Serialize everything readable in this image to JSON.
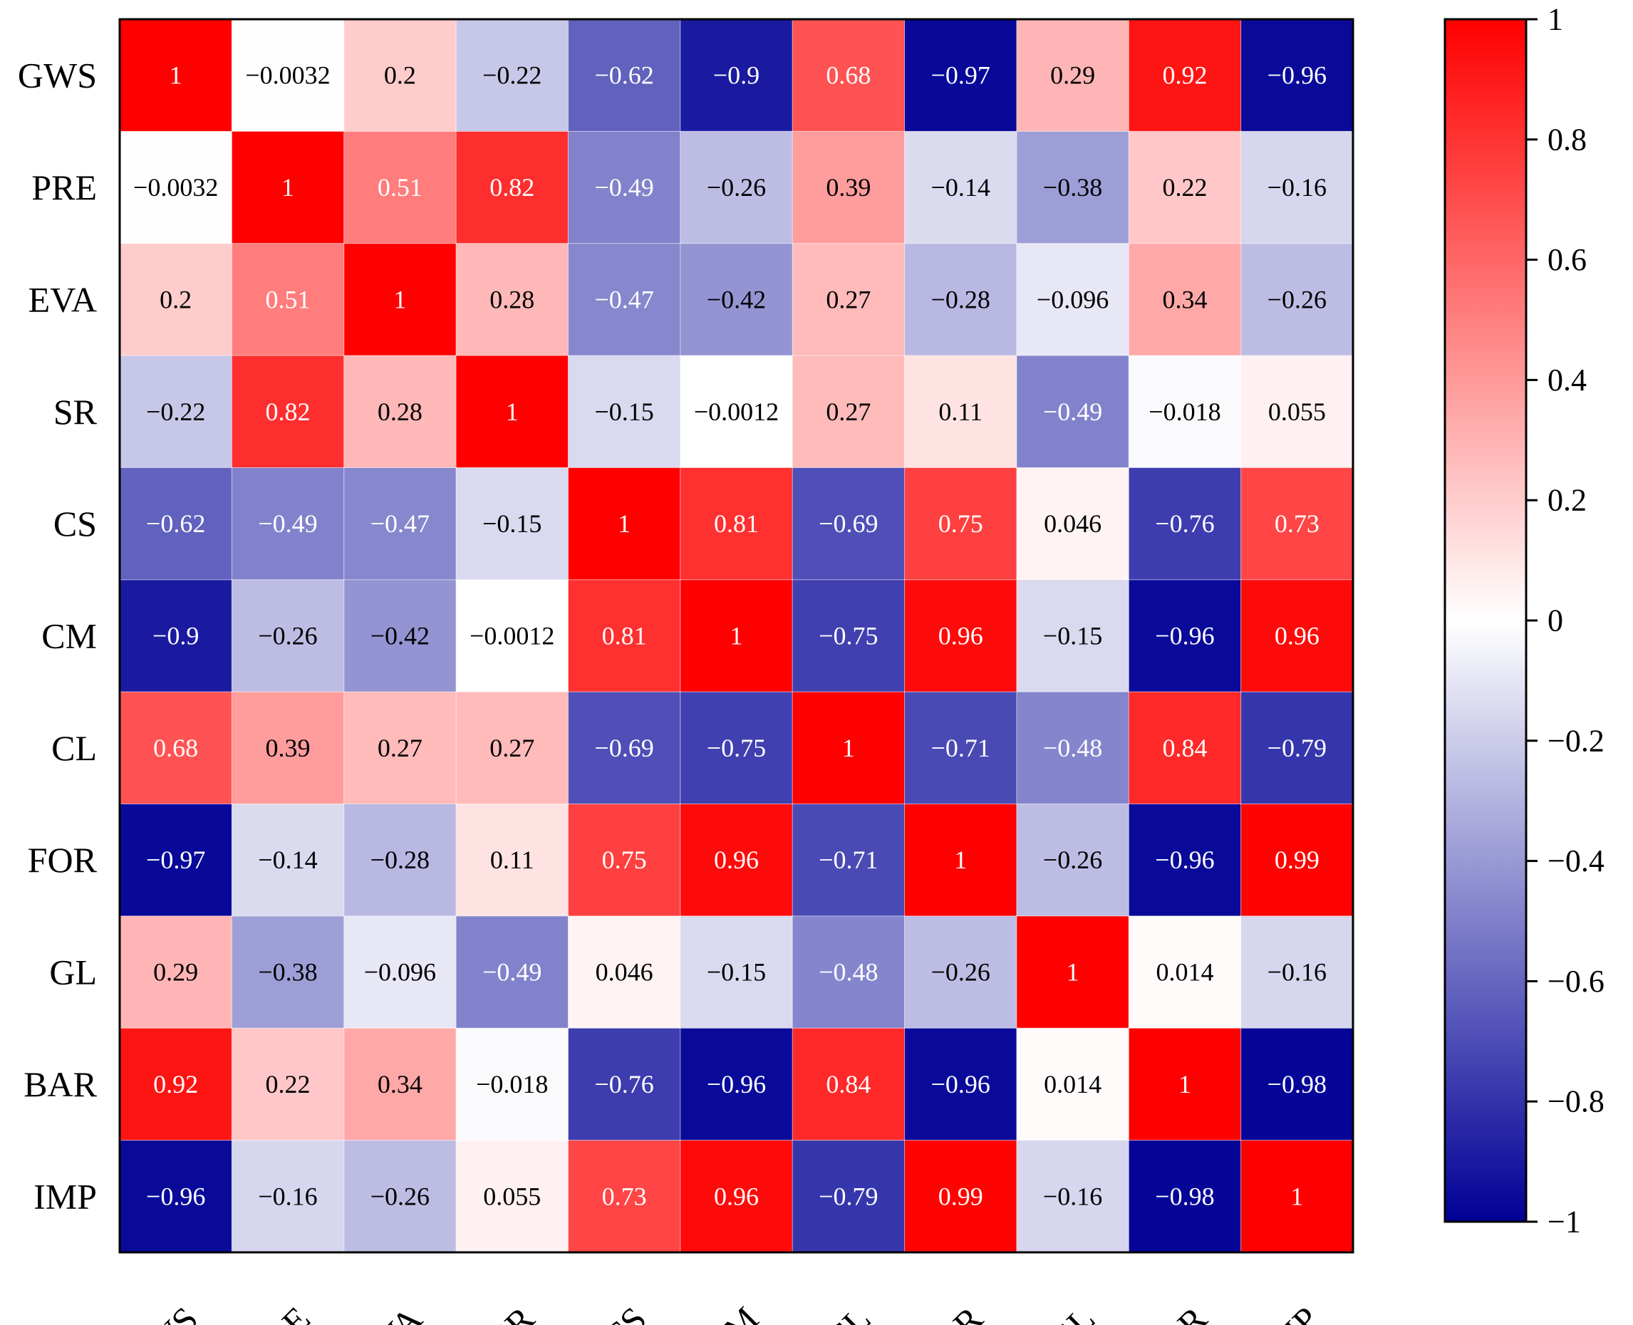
{
  "chart_data": {
    "type": "heatmap",
    "title": "",
    "xlabel": "",
    "ylabel": "",
    "row_labels": [
      "GWS",
      "PRE",
      "EVA",
      "SR",
      "CS",
      "CM",
      "CL",
      "FOR",
      "GL",
      "BAR",
      "IMP"
    ],
    "col_labels": [
      "GWS",
      "PRE",
      "EVA",
      "SR",
      "CS",
      "CM",
      "CL",
      "FOR",
      "GL",
      "BAR",
      "IMP"
    ],
    "values": [
      [
        1,
        -0.0032,
        0.2,
        -0.22,
        -0.62,
        -0.9,
        0.68,
        -0.97,
        0.29,
        0.92,
        -0.96
      ],
      [
        -0.0032,
        1,
        0.51,
        0.82,
        -0.49,
        -0.26,
        0.39,
        -0.14,
        -0.38,
        0.22,
        -0.16
      ],
      [
        0.2,
        0.51,
        1,
        0.28,
        -0.47,
        -0.42,
        0.27,
        -0.28,
        -0.096,
        0.34,
        -0.26
      ],
      [
        -0.22,
        0.82,
        0.28,
        1,
        -0.15,
        -0.0012,
        0.27,
        0.11,
        -0.49,
        -0.018,
        0.055
      ],
      [
        -0.62,
        -0.49,
        -0.47,
        -0.15,
        1,
        0.81,
        -0.69,
        0.75,
        0.046,
        -0.76,
        0.73
      ],
      [
        -0.9,
        -0.26,
        -0.42,
        -0.0012,
        0.81,
        1,
        -0.75,
        0.96,
        -0.15,
        -0.96,
        0.96
      ],
      [
        0.68,
        0.39,
        0.27,
        0.27,
        -0.69,
        -0.75,
        1,
        -0.71,
        -0.48,
        0.84,
        -0.79
      ],
      [
        -0.97,
        -0.14,
        -0.28,
        0.11,
        0.75,
        0.96,
        -0.71,
        1,
        -0.26,
        -0.96,
        0.99
      ],
      [
        0.29,
        -0.38,
        -0.096,
        -0.49,
        0.046,
        -0.15,
        -0.48,
        -0.26,
        1,
        0.014,
        -0.16
      ],
      [
        0.92,
        0.22,
        0.34,
        -0.018,
        -0.76,
        -0.96,
        0.84,
        -0.96,
        0.014,
        1,
        -0.98
      ],
      [
        -0.96,
        -0.16,
        -0.26,
        0.055,
        0.73,
        0.96,
        -0.79,
        0.99,
        -0.16,
        -0.98,
        1
      ]
    ],
    "value_labels": [
      [
        "1",
        "−0.0032",
        "0.2",
        "−0.22",
        "−0.62",
        "−0.9",
        "0.68",
        "−0.97",
        "0.29",
        "0.92",
        "−0.96"
      ],
      [
        "−0.0032",
        "1",
        "0.51",
        "0.82",
        "−0.49",
        "−0.26",
        "0.39",
        "−0.14",
        "−0.38",
        "0.22",
        "−0.16"
      ],
      [
        "0.2",
        "0.51",
        "1",
        "0.28",
        "−0.47",
        "−0.42",
        "0.27",
        "−0.28",
        "−0.096",
        "0.34",
        "−0.26"
      ],
      [
        "−0.22",
        "0.82",
        "0.28",
        "1",
        "−0.15",
        "−0.0012",
        "0.27",
        "0.11",
        "−0.49",
        "−0.018",
        "0.055"
      ],
      [
        "−0.62",
        "−0.49",
        "−0.47",
        "−0.15",
        "1",
        "0.81",
        "−0.69",
        "0.75",
        "0.046",
        "−0.76",
        "0.73"
      ],
      [
        "−0.9",
        "−0.26",
        "−0.42",
        "−0.0012",
        "0.81",
        "1",
        "−0.75",
        "0.96",
        "−0.15",
        "−0.96",
        "0.96"
      ],
      [
        "0.68",
        "0.39",
        "0.27",
        "0.27",
        "−0.69",
        "−0.75",
        "1",
        "−0.71",
        "−0.48",
        "0.84",
        "−0.79"
      ],
      [
        "−0.97",
        "−0.14",
        "−0.28",
        "0.11",
        "0.75",
        "0.96",
        "−0.71",
        "1",
        "−0.26",
        "−0.96",
        "0.99"
      ],
      [
        "0.29",
        "−0.38",
        "−0.096",
        "−0.49",
        "0.046",
        "−0.15",
        "−0.48",
        "−0.26",
        "1",
        "0.014",
        "−0.16"
      ],
      [
        "0.92",
        "0.22",
        "0.34",
        "−0.018",
        "−0.76",
        "−0.96",
        "0.84",
        "−0.96",
        "0.014",
        "1",
        "−0.98"
      ],
      [
        "−0.96",
        "−0.16",
        "−0.26",
        "0.055",
        "0.73",
        "0.96",
        "−0.79",
        "0.99",
        "−0.16",
        "−0.98",
        "1"
      ]
    ],
    "colorbar": {
      "range": [
        -1,
        1
      ],
      "ticks": [
        1,
        0.8,
        0.6,
        0.4,
        0.2,
        0,
        -0.2,
        -0.4,
        -0.6,
        -0.8,
        -1
      ],
      "tick_labels": [
        "1",
        "0.8",
        "0.6",
        "0.4",
        "0.2",
        "0",
        "−0.2",
        "−0.4",
        "−0.6",
        "−0.8",
        "−1"
      ],
      "colors": {
        "negative": "#000096",
        "zero": "#ffffff",
        "positive": "#ff0000"
      }
    },
    "grid": false,
    "legend": "right"
  }
}
